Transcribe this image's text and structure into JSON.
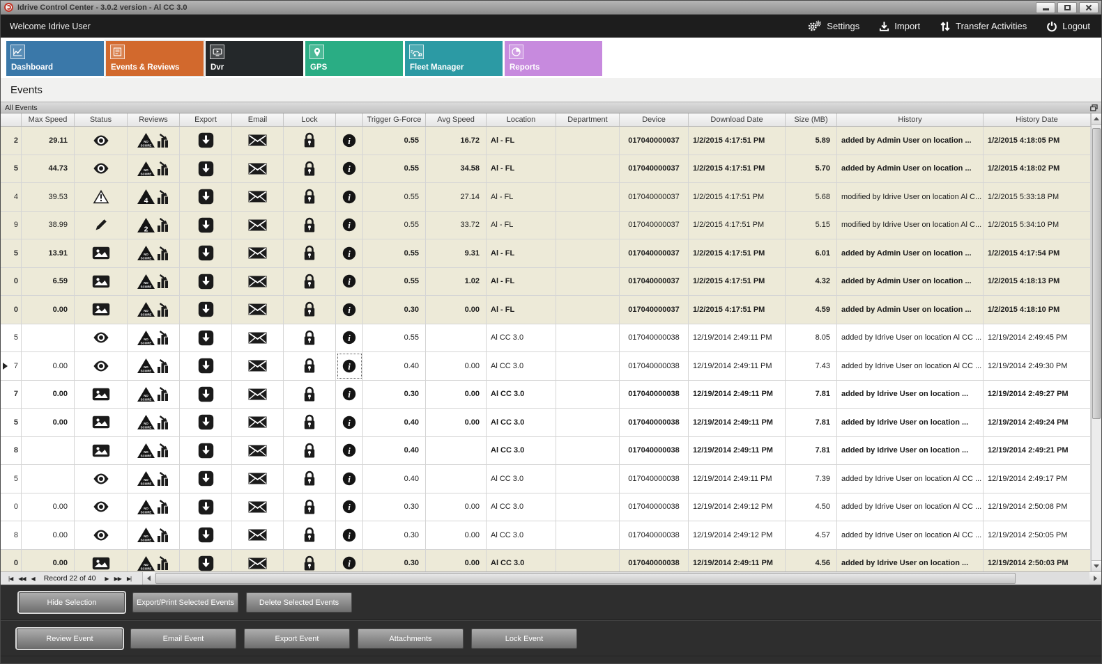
{
  "window": {
    "title": "Idrive Control Center - 3.0.2 version - Al CC 3.0"
  },
  "topbar": {
    "welcome": "Welcome Idrive User",
    "actions": [
      {
        "label": "Settings",
        "icon": "settings"
      },
      {
        "label": "Import",
        "icon": "import"
      },
      {
        "label": "Transfer Activities",
        "icon": "transfer"
      },
      {
        "label": "Logout",
        "icon": "power"
      }
    ]
  },
  "tabs": [
    {
      "label": "Dashboard",
      "icon": "dashboard",
      "color": "#3a78a9",
      "selected": false
    },
    {
      "label": "Events & Reviews",
      "icon": "events",
      "color": "#d2692d",
      "selected": true
    },
    {
      "label": "Dvr",
      "icon": "dvr",
      "color": "#24282a",
      "selected": false
    },
    {
      "label": "GPS",
      "icon": "gps",
      "color": "#2aad84",
      "selected": false
    },
    {
      "label": "Fleet Manager",
      "icon": "fleet",
      "color": "#2c9aa4",
      "selected": false
    },
    {
      "label": "Reports",
      "icon": "reports",
      "color": "#c78ade",
      "selected": false
    }
  ],
  "page_title": "Events",
  "panel_title": "All Events",
  "grid": {
    "columns": [
      "Max Speed",
      "Status",
      "Reviews",
      "Export",
      "Email",
      "Lock",
      "",
      "Trigger G-Force",
      "Avg Speed",
      "Location",
      "Department",
      "Device",
      "Download Date",
      "Size (MB)",
      "History",
      "History Date"
    ],
    "rows": [
      {
        "edge": "2",
        "max_speed": "29.11",
        "status": "eye",
        "badge": "NO SCORE",
        "trigger_g": "0.55",
        "avg_speed": "16.72",
        "location": "Al - FL",
        "department": "",
        "device": "017040000037",
        "download_date": "1/2/2015 4:17:51 PM",
        "size": "5.89",
        "history": "added by Admin User on location ...",
        "history_date": "1/2/2015 4:18:05 PM",
        "bold": true,
        "beige": true,
        "selected": false
      },
      {
        "edge": "5",
        "max_speed": "44.73",
        "status": "eye",
        "badge": "NO SCORE",
        "trigger_g": "0.55",
        "avg_speed": "34.58",
        "location": "Al - FL",
        "department": "",
        "device": "017040000037",
        "download_date": "1/2/2015 4:17:51 PM",
        "size": "5.70",
        "history": "added by Admin User on location ...",
        "history_date": "1/2/2015 4:18:02 PM",
        "bold": true,
        "beige": true,
        "selected": false
      },
      {
        "edge": "4",
        "max_speed": "39.53",
        "status": "warning",
        "badge": "4",
        "trigger_g": "0.55",
        "avg_speed": "27.14",
        "location": "Al - FL",
        "department": "",
        "device": "017040000037",
        "download_date": "1/2/2015 4:17:51 PM",
        "size": "5.68",
        "history": "modified by Idrive User on location Al C...",
        "history_date": "1/2/2015 5:33:18 PM",
        "bold": false,
        "beige": true,
        "selected": false
      },
      {
        "edge": "9",
        "max_speed": "38.99",
        "status": "pencil",
        "badge": "2",
        "trigger_g": "0.55",
        "avg_speed": "33.72",
        "location": "Al - FL",
        "department": "",
        "device": "017040000037",
        "download_date": "1/2/2015 4:17:51 PM",
        "size": "5.15",
        "history": "modified by Idrive User on location Al C...",
        "history_date": "1/2/2015 5:34:10 PM",
        "bold": false,
        "beige": true,
        "selected": false
      },
      {
        "edge": "5",
        "max_speed": "13.91",
        "status": "picture",
        "badge": "NO SCORE",
        "trigger_g": "0.55",
        "avg_speed": "9.31",
        "location": "Al - FL",
        "department": "",
        "device": "017040000037",
        "download_date": "1/2/2015 4:17:51 PM",
        "size": "6.01",
        "history": "added by Admin User on location ...",
        "history_date": "1/2/2015 4:17:54 PM",
        "bold": true,
        "beige": true,
        "selected": false
      },
      {
        "edge": "0",
        "max_speed": "6.59",
        "status": "picture",
        "badge": "NO SCORE",
        "trigger_g": "0.55",
        "avg_speed": "1.02",
        "location": "Al - FL",
        "department": "",
        "device": "017040000037",
        "download_date": "1/2/2015 4:17:51 PM",
        "size": "4.32",
        "history": "added by Admin User on location ...",
        "history_date": "1/2/2015 4:18:13 PM",
        "bold": true,
        "beige": true,
        "selected": false
      },
      {
        "edge": "0",
        "max_speed": "0.00",
        "status": "picture",
        "badge": "NO SCORE",
        "trigger_g": "0.30",
        "avg_speed": "0.00",
        "location": "Al - FL",
        "department": "",
        "device": "017040000037",
        "download_date": "1/2/2015 4:17:51 PM",
        "size": "4.59",
        "history": "added by Admin User on location ...",
        "history_date": "1/2/2015 4:18:10 PM",
        "bold": true,
        "beige": true,
        "selected": false
      },
      {
        "edge": "5",
        "max_speed": "",
        "status": "eye",
        "badge": "NO SCORE",
        "trigger_g": "0.55",
        "avg_speed": "",
        "location": "Al CC 3.0",
        "department": "",
        "device": "017040000038",
        "download_date": "12/19/2014 2:49:11 PM",
        "size": "8.05",
        "history": "added by Idrive User on location Al CC ...",
        "history_date": "12/19/2014 2:49:45 PM",
        "bold": false,
        "beige": false,
        "selected": false
      },
      {
        "edge": "7",
        "max_speed": "0.00",
        "status": "eye",
        "badge": "NO SCORE",
        "trigger_g": "0.40",
        "avg_speed": "0.00",
        "location": "Al CC 3.0",
        "department": "",
        "device": "017040000038",
        "download_date": "12/19/2014 2:49:11 PM",
        "size": "7.43",
        "history": "added by Idrive User on location Al CC ...",
        "history_date": "12/19/2014 2:49:30 PM",
        "bold": false,
        "beige": false,
        "selected": true
      },
      {
        "edge": "7",
        "max_speed": "0.00",
        "status": "picture",
        "badge": "NO SCORE",
        "trigger_g": "0.30",
        "avg_speed": "0.00",
        "location": "Al CC 3.0",
        "department": "",
        "device": "017040000038",
        "download_date": "12/19/2014 2:49:11 PM",
        "size": "7.81",
        "history": "added by Idrive User on location ...",
        "history_date": "12/19/2014 2:49:27 PM",
        "bold": true,
        "beige": false,
        "selected": false
      },
      {
        "edge": "5",
        "max_speed": "0.00",
        "status": "picture",
        "badge": "NO SCORE",
        "trigger_g": "0.40",
        "avg_speed": "0.00",
        "location": "Al CC 3.0",
        "department": "",
        "device": "017040000038",
        "download_date": "12/19/2014 2:49:11 PM",
        "size": "7.81",
        "history": "added by Idrive User on location ...",
        "history_date": "12/19/2014 2:49:24 PM",
        "bold": true,
        "beige": false,
        "selected": false
      },
      {
        "edge": "8",
        "max_speed": "",
        "status": "picture",
        "badge": "NO SCORE",
        "trigger_g": "0.40",
        "avg_speed": "",
        "location": "Al CC 3.0",
        "department": "",
        "device": "017040000038",
        "download_date": "12/19/2014 2:49:11 PM",
        "size": "7.81",
        "history": "added by Idrive User on location ...",
        "history_date": "12/19/2014 2:49:21 PM",
        "bold": true,
        "beige": false,
        "selected": false
      },
      {
        "edge": "5",
        "max_speed": "",
        "status": "eye",
        "badge": "NO SCORE",
        "trigger_g": "0.40",
        "avg_speed": "",
        "location": "Al CC 3.0",
        "department": "",
        "device": "017040000038",
        "download_date": "12/19/2014 2:49:11 PM",
        "size": "7.39",
        "history": "added by Idrive User on location Al CC ...",
        "history_date": "12/19/2014 2:49:17 PM",
        "bold": false,
        "beige": false,
        "selected": false
      },
      {
        "edge": "0",
        "max_speed": "0.00",
        "status": "eye",
        "badge": "NO SCORE",
        "trigger_g": "0.30",
        "avg_speed": "0.00",
        "location": "Al CC 3.0",
        "department": "",
        "device": "017040000038",
        "download_date": "12/19/2014 2:49:12 PM",
        "size": "4.50",
        "history": "added by Idrive User on location Al CC ...",
        "history_date": "12/19/2014 2:50:08 PM",
        "bold": false,
        "beige": false,
        "selected": false
      },
      {
        "edge": "8",
        "max_speed": "0.00",
        "status": "eye",
        "badge": "NO SCORE",
        "trigger_g": "0.30",
        "avg_speed": "0.00",
        "location": "Al CC 3.0",
        "department": "",
        "device": "017040000038",
        "download_date": "12/19/2014 2:49:12 PM",
        "size": "4.57",
        "history": "added by Idrive User on location Al CC ...",
        "history_date": "12/19/2014 2:50:05 PM",
        "bold": false,
        "beige": false,
        "selected": false
      },
      {
        "edge": "0",
        "max_speed": "0.00",
        "status": "picture",
        "badge": "NO SCORE",
        "trigger_g": "0.30",
        "avg_speed": "0.00",
        "location": "Al CC 3.0",
        "department": "",
        "device": "017040000038",
        "download_date": "12/19/2014 2:49:11 PM",
        "size": "4.56",
        "history": "added by Idrive User on location ...",
        "history_date": "12/19/2014 2:50:03 PM",
        "bold": true,
        "beige": true,
        "selected": false
      }
    ]
  },
  "navigator": {
    "record_text": "Record 22 of 40",
    "buttons_left": [
      "|◀",
      "◀◀",
      "◀"
    ],
    "buttons_right": [
      "▶",
      "▶▶",
      "▶|"
    ]
  },
  "bottom": {
    "selection_buttons": [
      {
        "label": "Hide Selection",
        "focused": true
      },
      {
        "label": "Export/Print Selected Events",
        "focused": false
      },
      {
        "label": "Delete Selected  Events",
        "focused": false
      }
    ],
    "event_buttons": [
      {
        "label": "Review Event",
        "focused": true
      },
      {
        "label": "Email Event",
        "focused": false
      },
      {
        "label": "Export Event",
        "focused": false
      },
      {
        "label": "Attachments",
        "focused": false
      },
      {
        "label": "Lock Event",
        "focused": false
      }
    ]
  }
}
